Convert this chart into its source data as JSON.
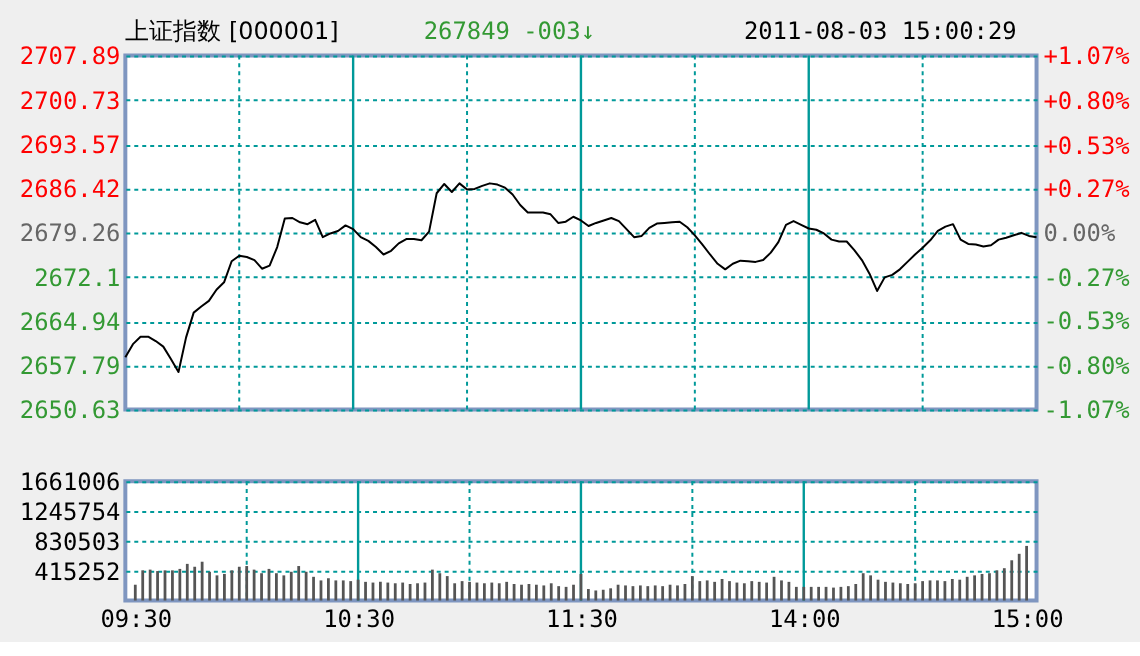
{
  "chart_data": [
    {
      "type": "line",
      "title": "上证指数 [000001]",
      "annotations": [
        "267849",
        "-003↓",
        "2011-08-03 15:00:29"
      ],
      "categories": [
        null,
        null,
        null,
        null,
        null,
        null,
        null,
        null,
        null,
        null,
        null,
        null,
        null,
        null,
        null,
        null,
        null,
        null,
        null,
        null,
        null,
        null,
        null,
        null,
        null,
        null,
        null,
        null,
        null,
        null,
        null,
        null,
        null,
        null,
        null,
        null,
        null,
        null,
        null,
        null,
        null,
        null,
        null,
        null,
        null,
        null,
        null,
        null,
        null,
        null,
        null,
        null,
        null,
        null,
        null,
        null,
        null,
        null,
        null,
        null,
        null,
        null,
        null,
        null,
        null,
        null,
        null,
        null,
        null,
        null,
        null,
        null,
        null,
        null,
        null,
        null,
        null,
        null,
        null,
        null,
        null,
        null,
        null,
        null,
        null,
        null,
        null,
        null,
        null,
        null,
        null,
        null,
        null,
        null,
        null,
        null,
        null,
        null,
        null,
        null,
        null,
        null,
        null,
        null,
        null,
        null,
        null,
        null,
        null,
        null,
        null,
        null,
        null,
        null,
        null,
        null,
        null,
        null,
        null,
        null,
        null
      ],
      "series": [
        {
          "color": "#000000",
          "values": [
            2659.1,
            2661.2,
            2662.4,
            2662.4,
            2661.7,
            2660.8,
            2658.8,
            2656.7,
            2662.3,
            2666.3,
            2667.3,
            2668.2,
            2670.0,
            2671.2,
            2674.6,
            2675.5,
            2675.3,
            2674.8,
            2673.4,
            2673.9,
            2676.9,
            2681.5,
            2681.6,
            2680.9,
            2680.6,
            2681.3,
            2678.5,
            2679.1,
            2679.5,
            2680.4,
            2679.8,
            2678.5,
            2677.9,
            2676.9,
            2675.7,
            2676.3,
            2677.5,
            2678.2,
            2678.2,
            2678.0,
            2679.4,
            2685.6,
            2687.1,
            2685.8,
            2687.2,
            2686.2,
            2686.3,
            2686.8,
            2687.2,
            2687.0,
            2686.5,
            2685.4,
            2683.7,
            2682.5,
            2682.5,
            2682.5,
            2682.2,
            2680.8,
            2681.0,
            2681.8,
            2681.2,
            2680.3,
            2680.8,
            2681.2,
            2681.6,
            2681.1,
            2679.8,
            2678.5,
            2678.7,
            2680.0,
            2680.7,
            2680.8,
            2680.9,
            2681.0,
            2680.1,
            2678.8,
            2677.3,
            2675.7,
            2674.2,
            2673.3,
            2674.2,
            2674.7,
            2674.6,
            2674.5,
            2674.8,
            2676.0,
            2677.7,
            2680.5,
            2681.1,
            2680.5,
            2679.9,
            2679.7,
            2679.1,
            2678.1,
            2677.8,
            2677.8,
            2676.4,
            2674.8,
            2672.6,
            2669.8,
            2672.0,
            2672.4,
            2673.3,
            2674.5,
            2675.7,
            2676.8,
            2678.0,
            2679.5,
            2680.2,
            2680.6,
            2678.1,
            2677.4,
            2677.3,
            2677.0,
            2677.2,
            2678.1,
            2678.4,
            2678.8,
            2679.2,
            2678.7,
            2678.5
          ]
        }
      ],
      "ylim": [
        2650.63,
        2707.89
      ],
      "yticks": [
        2650.63,
        2657.79,
        2664.94,
        2672.1,
        2679.26,
        2686.42,
        2693.57,
        2700.73,
        2707.89
      ],
      "y2lim": [
        -1.07,
        1.07
      ],
      "y2ticks": [
        {
          "value": -1.07,
          "label": "-1.07%"
        },
        {
          "value": -0.8,
          "label": "-0.80%"
        },
        {
          "value": -0.53,
          "label": "-0.53%"
        },
        {
          "value": -0.27,
          "label": "-0.27%"
        },
        {
          "value": 0,
          "label": "0.00%"
        },
        {
          "value": 0.27,
          "label": "+0.27%"
        },
        {
          "value": 0.53,
          "label": "+0.53%"
        },
        {
          "value": 0.8,
          "label": "+0.80%"
        },
        {
          "value": 1.07,
          "label": "+1.07%"
        }
      ],
      "grid": true,
      "tick_labels": "y"
    },
    {
      "type": "bar",
      "color": "#555555",
      "categories": [
        "09:30",
        null,
        null,
        null,
        null,
        null,
        null,
        null,
        null,
        null,
        null,
        null,
        null,
        null,
        null,
        null,
        null,
        null,
        null,
        null,
        null,
        null,
        null,
        null,
        null,
        null,
        null,
        null,
        null,
        null,
        "10:30",
        null,
        null,
        null,
        null,
        null,
        null,
        null,
        null,
        null,
        null,
        null,
        null,
        null,
        null,
        null,
        null,
        null,
        null,
        null,
        null,
        null,
        null,
        null,
        null,
        null,
        null,
        null,
        null,
        null,
        "11:30",
        null,
        null,
        null,
        null,
        null,
        null,
        null,
        null,
        null,
        null,
        null,
        null,
        null,
        null,
        null,
        null,
        null,
        null,
        null,
        null,
        null,
        null,
        null,
        null,
        null,
        null,
        null,
        null,
        null,
        "14:00",
        null,
        null,
        null,
        null,
        null,
        null,
        null,
        null,
        null,
        null,
        null,
        null,
        null,
        null,
        null,
        null,
        null,
        null,
        null,
        null,
        null,
        null,
        null,
        null,
        null,
        null,
        null,
        null,
        null,
        "15:00"
      ],
      "values": [
        220000,
        420000,
        430000,
        410000,
        420000,
        420000,
        440000,
        510000,
        470000,
        540000,
        400000,
        350000,
        370000,
        420000,
        470000,
        480000,
        430000,
        380000,
        440000,
        380000,
        350000,
        400000,
        480000,
        400000,
        330000,
        280000,
        310000,
        280000,
        280000,
        270000,
        290000,
        260000,
        250000,
        260000,
        250000,
        240000,
        250000,
        230000,
        240000,
        250000,
        430000,
        380000,
        340000,
        240000,
        270000,
        260000,
        250000,
        240000,
        250000,
        240000,
        260000,
        230000,
        220000,
        230000,
        220000,
        210000,
        240000,
        200000,
        190000,
        220000,
        370000,
        160000,
        140000,
        150000,
        170000,
        220000,
        210000,
        200000,
        210000,
        200000,
        210000,
        200000,
        220000,
        210000,
        230000,
        340000,
        270000,
        280000,
        260000,
        300000,
        270000,
        250000,
        240000,
        270000,
        260000,
        250000,
        330000,
        280000,
        260000,
        190000,
        190000,
        190000,
        190000,
        190000,
        180000,
        190000,
        200000,
        230000,
        380000,
        350000,
        290000,
        260000,
        250000,
        240000,
        230000,
        240000,
        270000,
        280000,
        280000,
        270000,
        300000,
        290000,
        330000,
        350000,
        370000,
        380000,
        420000,
        450000,
        560000,
        650000,
        760000
      ],
      "ylim": [
        0,
        1661006
      ],
      "yticks": [
        415252,
        830503,
        1245754,
        1661006
      ],
      "grid": true
    }
  ]
}
